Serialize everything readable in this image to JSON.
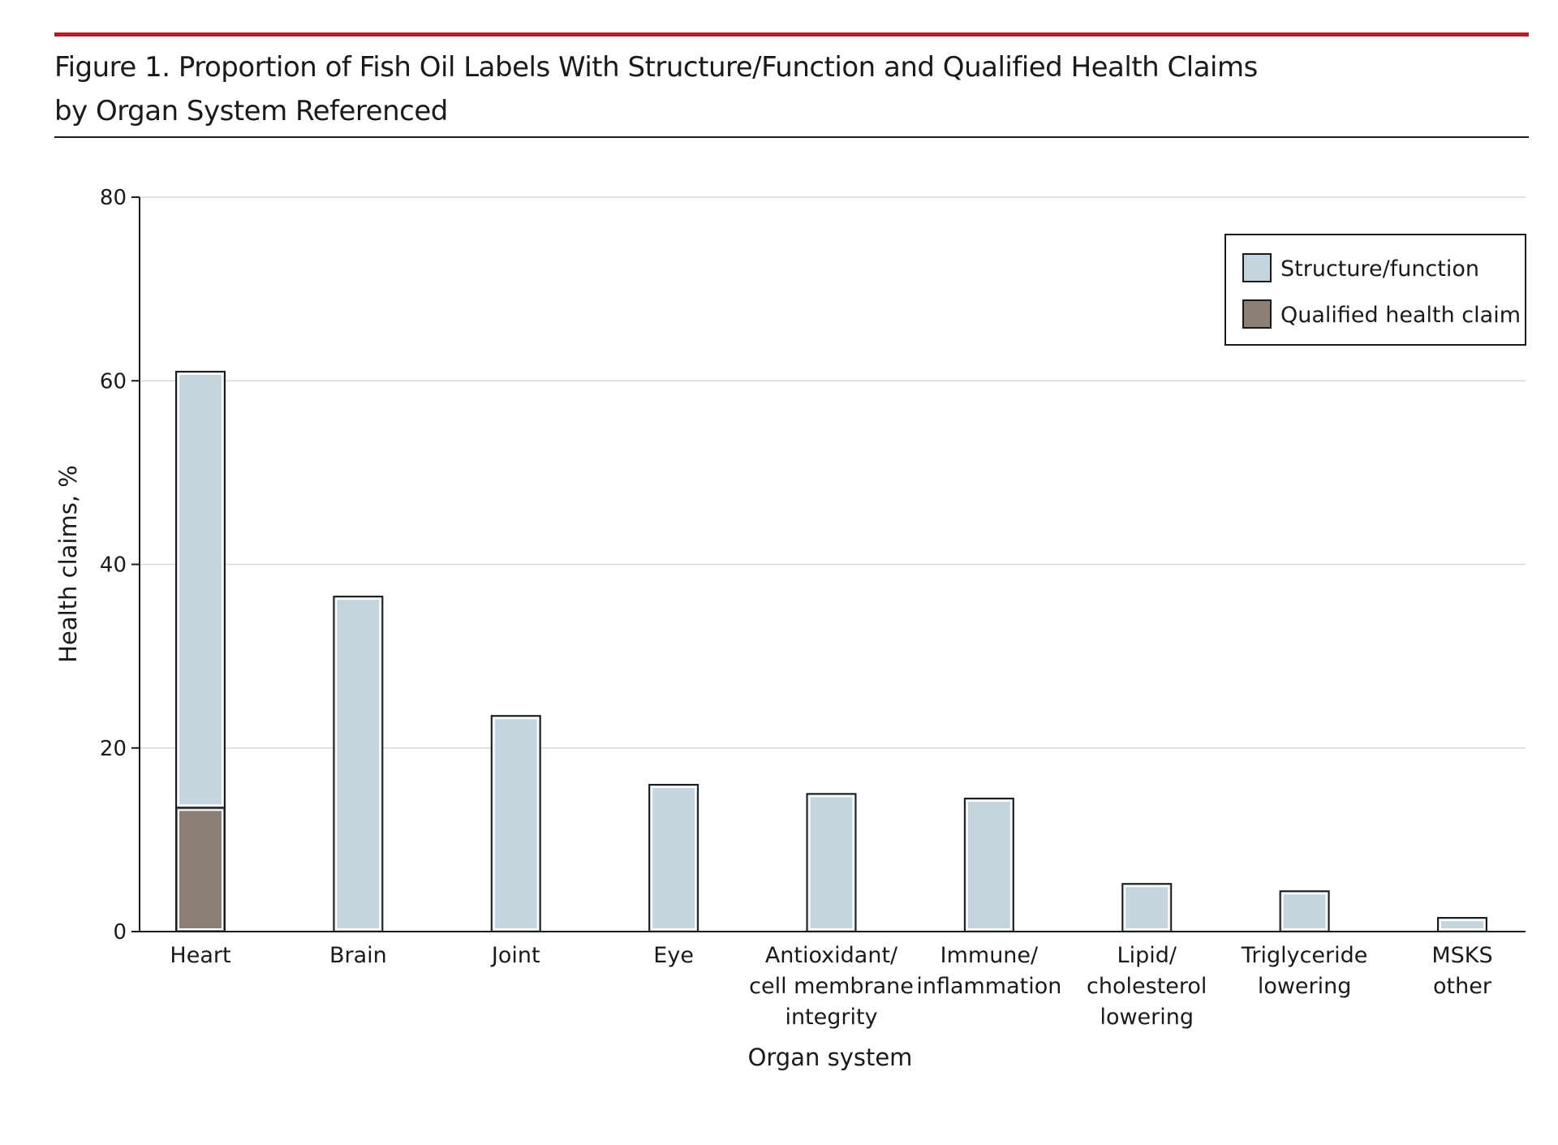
{
  "figure": {
    "title_lines": [
      "Figure 1. Proportion of Fish Oil Labels With Structure/Function and Qualified Health Claims",
      "by Organ System Referenced"
    ]
  },
  "chart_data": {
    "type": "bar",
    "stacked": true,
    "title": "Figure 1. Proportion of Fish Oil Labels With Structure/Function and Qualified Health Claims by Organ System Referenced",
    "xlabel": "Organ system",
    "ylabel": "Health claims, %",
    "ylim": [
      0,
      80
    ],
    "yticks": [
      0,
      20,
      40,
      60,
      80
    ],
    "grid": true,
    "legend_position": "top-right",
    "categories": [
      [
        "Heart"
      ],
      [
        "Brain"
      ],
      [
        "Joint"
      ],
      [
        "Eye"
      ],
      [
        "Antioxidant/",
        "cell membrane",
        "integrity"
      ],
      [
        "Immune/",
        "inflammation"
      ],
      [
        "Lipid/",
        "cholesterol",
        "lowering"
      ],
      [
        "Triglyceride",
        "lowering"
      ],
      [
        "MSKS",
        "other"
      ]
    ],
    "series": [
      {
        "name": "Qualified health claim",
        "color": "#8e7f75",
        "values": [
          13.5,
          0,
          0,
          0,
          0,
          0,
          0,
          0,
          0
        ]
      },
      {
        "name": "Structure/function",
        "color": "#c5d5df",
        "values": [
          47.5,
          36.5,
          23.5,
          16,
          15,
          14.5,
          5.2,
          4.4,
          1.5
        ]
      }
    ],
    "legend_order": [
      "Structure/function",
      "Qualified health claim"
    ]
  }
}
